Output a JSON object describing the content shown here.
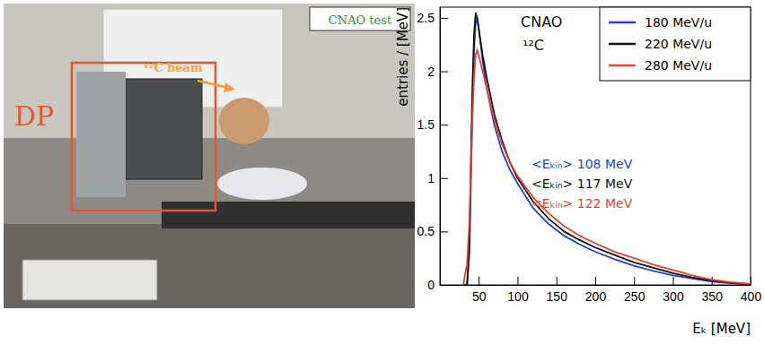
{
  "chart_data": {
    "type": "line",
    "x_label": "Eₖ [MeV]",
    "y_label": "entries / [MeV]",
    "x": [
      30,
      35,
      38,
      40,
      42,
      44,
      46,
      48,
      50,
      55,
      60,
      70,
      80,
      90,
      100,
      120,
      140,
      160,
      180,
      200,
      225,
      250,
      275,
      300,
      325,
      350,
      375,
      400
    ],
    "series": [
      {
        "name": "180 MeV/u",
        "color": "#1f3fd0",
        "values": [
          0,
          0,
          0.3,
          1.0,
          1.7,
          2.2,
          2.45,
          2.5,
          2.4,
          2.1,
          1.85,
          1.5,
          1.25,
          1.08,
          0.95,
          0.72,
          0.57,
          0.46,
          0.38,
          0.31,
          0.24,
          0.18,
          0.13,
          0.09,
          0.06,
          0.03,
          0.015,
          0.005
        ]
      },
      {
        "name": "220 MeV/u",
        "color": "#111111",
        "values": [
          0,
          0,
          0.4,
          1.2,
          1.9,
          2.35,
          2.55,
          2.5,
          2.4,
          2.15,
          1.95,
          1.6,
          1.35,
          1.15,
          1.0,
          0.78,
          0.62,
          0.5,
          0.42,
          0.35,
          0.28,
          0.21,
          0.16,
          0.11,
          0.07,
          0.04,
          0.02,
          0.005
        ]
      },
      {
        "name": "280 MeV/u",
        "color": "#e8412c",
        "values": [
          0,
          0.2,
          0.6,
          1.1,
          1.6,
          1.95,
          2.15,
          2.2,
          2.15,
          2.0,
          1.85,
          1.55,
          1.32,
          1.15,
          1.02,
          0.82,
          0.67,
          0.55,
          0.46,
          0.39,
          0.31,
          0.25,
          0.19,
          0.14,
          0.09,
          0.05,
          0.025,
          0.01
        ]
      }
    ],
    "xlim": [
      0,
      400
    ],
    "ylim": [
      0,
      2.6
    ],
    "xticks": [
      50,
      100,
      150,
      200,
      250,
      300,
      350,
      400
    ],
    "yticks": [
      0,
      0.5,
      1,
      1.5,
      2,
      2.5
    ],
    "legend": "upper right",
    "annotations": [
      {
        "text": "CNAO",
        "color": "#111111"
      },
      {
        "text": "¹²C",
        "color": "#111111"
      },
      {
        "text": "<Eₖᵢₙ> 108 MeV",
        "color": "#1f3fd0"
      },
      {
        "text": "<Eₖᵢₙ> 117 MeV",
        "color": "#111111"
      },
      {
        "text": "<Eₖᵢₙ> 122 MeV",
        "color": "#e8412c"
      }
    ]
  },
  "photo": {
    "caption": "CNAO test",
    "beam_label": "¹²C beam",
    "detector_label": "DP"
  }
}
